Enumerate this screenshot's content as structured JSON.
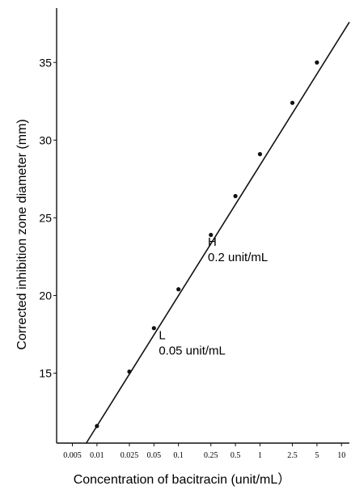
{
  "chart_data": {
    "type": "scatter",
    "x_scale": "log",
    "xlabel": "Concentration of bacitracin (unit/mL）",
    "ylabel": "Corrected inhibition zone diameter (mm)",
    "x_ticks": [
      {
        "value": 0.005,
        "label": "0.005"
      },
      {
        "value": 0.01,
        "label": "0.01"
      },
      {
        "value": 0.025,
        "label": "0.025"
      },
      {
        "value": 0.05,
        "label": "0.05"
      },
      {
        "value": 0.1,
        "label": "0.1"
      },
      {
        "value": 0.25,
        "label": "0.25"
      },
      {
        "value": 0.5,
        "label": "0.5"
      },
      {
        "value": 1,
        "label": "1"
      },
      {
        "value": 2.5,
        "label": "2.5"
      },
      {
        "value": 5,
        "label": "5"
      },
      {
        "value": 10,
        "label": "10"
      }
    ],
    "y_ticks": [
      {
        "value": 15,
        "label": "15"
      },
      {
        "value": 20,
        "label": "20"
      },
      {
        "value": 25,
        "label": "25"
      },
      {
        "value": 30,
        "label": "30"
      },
      {
        "value": 35,
        "label": "35"
      }
    ],
    "xlim": [
      0.0032,
      12.5
    ],
    "ylim": [
      10.5,
      38.5
    ],
    "points": [
      {
        "x": 0.01,
        "y": 11.6
      },
      {
        "x": 0.025,
        "y": 15.1
      },
      {
        "x": 0.05,
        "y": 17.9
      },
      {
        "x": 0.1,
        "y": 20.4
      },
      {
        "x": 0.25,
        "y": 23.9
      },
      {
        "x": 0.5,
        "y": 26.4
      },
      {
        "x": 1,
        "y": 29.1
      },
      {
        "x": 2.5,
        "y": 32.4
      },
      {
        "x": 5,
        "y": 35.0
      }
    ],
    "fit_line": [
      {
        "x": 0.0074,
        "y": 10.5
      },
      {
        "x": 12.5,
        "y": 37.6
      }
    ],
    "annotations": [
      {
        "id": "H",
        "letter": "H",
        "text": "0.2 unit/mL",
        "x": 0.2,
        "y": 23.2
      },
      {
        "id": "L",
        "letter": "L",
        "text": "0.05 unit/mL",
        "x": 0.05,
        "y": 17.2
      }
    ],
    "grid": false,
    "legend": "none"
  }
}
